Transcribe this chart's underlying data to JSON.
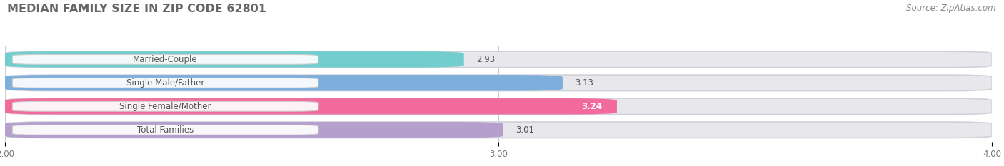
{
  "title": "MEDIAN FAMILY SIZE IN ZIP CODE 62801",
  "source": "Source: ZipAtlas.com",
  "categories": [
    "Married-Couple",
    "Single Male/Father",
    "Single Female/Mother",
    "Total Families"
  ],
  "values": [
    2.93,
    3.13,
    3.24,
    3.01
  ],
  "bar_colors": [
    "#72cece",
    "#7daedc",
    "#f26b9c",
    "#b59fcc"
  ],
  "bar_bg_color": "#e8e8ec",
  "xlim": [
    2.0,
    4.0
  ],
  "xticks": [
    2.0,
    3.0,
    4.0
  ],
  "xtick_labels": [
    "2.00",
    "3.00",
    "4.00"
  ],
  "bg_color": "#ffffff",
  "label_color": "#555555",
  "value_label_color": "#555555",
  "title_color": "#666666",
  "source_color": "#888888",
  "bar_height": 0.68,
  "title_fontsize": 11.5,
  "label_fontsize": 8.5,
  "value_fontsize": 8.5,
  "tick_fontsize": 8.5,
  "source_fontsize": 8.5,
  "value_inside": [
    false,
    false,
    true,
    false
  ],
  "value_bold": [
    false,
    false,
    true,
    false
  ]
}
